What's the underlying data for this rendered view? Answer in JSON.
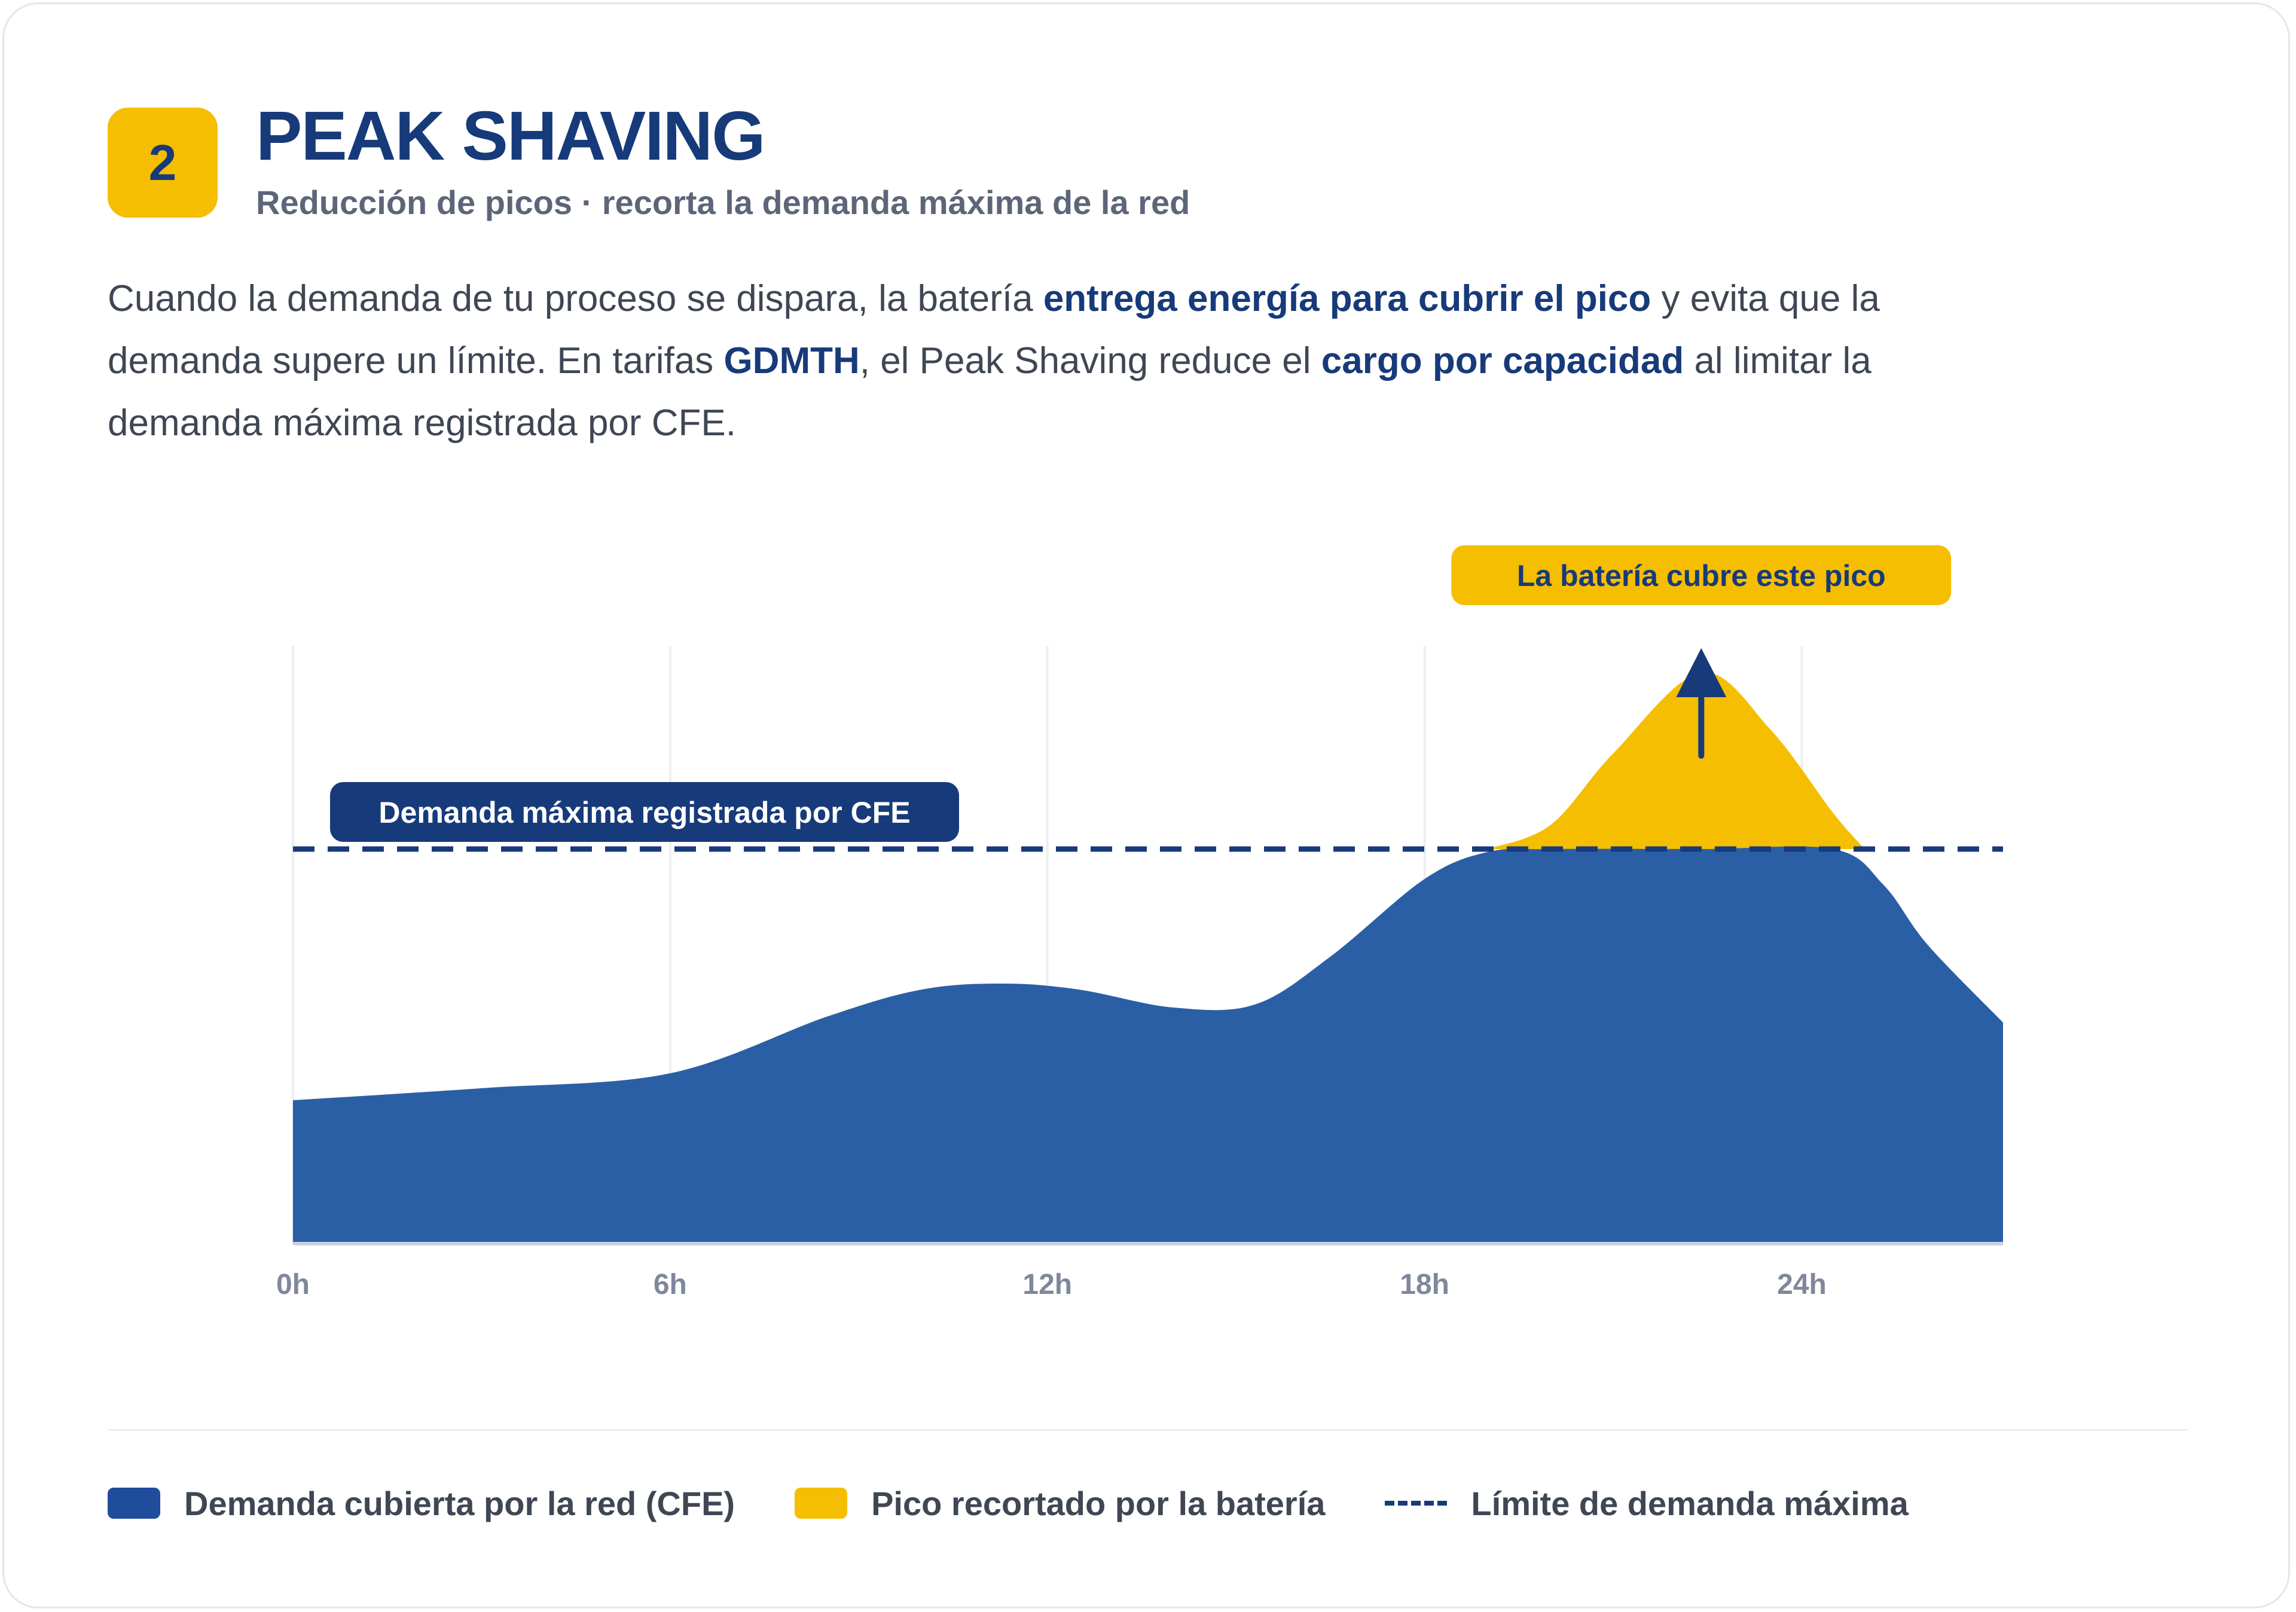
{
  "header": {
    "badge": "2",
    "title": "PEAK SHAVING",
    "subtitle": "Reducción de picos · recorta la demanda máxima de la red"
  },
  "description": {
    "l1a": "Cuando la demanda de tu proceso se dispara, la batería ",
    "l1b": "entrega energía para cubrir el pico",
    "l1c": " y evita que la",
    "l2a": "demanda supere un límite. En tarifas ",
    "l2b": "GDMTH",
    "l2c": ", el Peak Shaving reduce el ",
    "l2d": "cargo por capacidad",
    "l2e": " al limitar la",
    "l3a": "demanda máxima registrada por CFE."
  },
  "colors": {
    "navy": "#173a7a",
    "blue": "#2b5fa5",
    "yellow": "#f5be00",
    "grid": "#eceef2",
    "tick": "#7f889a"
  },
  "chart_data": {
    "type": "area",
    "x_ticks": [
      "0h",
      "6h",
      "12h",
      "18h",
      "24h"
    ],
    "x_tick_values": [
      0,
      6,
      12,
      18,
      24
    ],
    "xlim": [
      0,
      27.2
    ],
    "ylim": [
      0,
      100
    ],
    "series": [
      {
        "name": "Demanda cubierta por la red (CFE)",
        "x": [
          0,
          3,
          6,
          8.5,
          10,
          11.3,
          12.5,
          14,
          15.3,
          16.5,
          18,
          19,
          20,
          22.4,
          24.5,
          25.3,
          26,
          27.2
        ],
        "y": [
          24,
          26,
          28.5,
          38,
          42.5,
          43.5,
          42.5,
          39.5,
          40,
          48,
          61,
          65.5,
          66,
          66,
          66,
          60,
          50,
          37
        ]
      },
      {
        "name": "Pico recortado por la batería",
        "x": [
          19,
          20,
          21,
          22.4,
          23.5,
          24.5,
          25
        ],
        "y": [
          66,
          70,
          82,
          95.5,
          86,
          72,
          66
        ]
      }
    ],
    "threshold": {
      "name": "Límite de demanda máxima",
      "y": 66
    },
    "annotations": {
      "limit_label": "Demanda máxima registrada por CFE",
      "peak_label": "La batería cubre este pico"
    },
    "grid": "vertical"
  },
  "legend": {
    "grid_label": "Demanda cubierta por la red (CFE)",
    "battery_label": "Pico recortado por la batería",
    "limit_label": "Límite de demanda máxima"
  }
}
